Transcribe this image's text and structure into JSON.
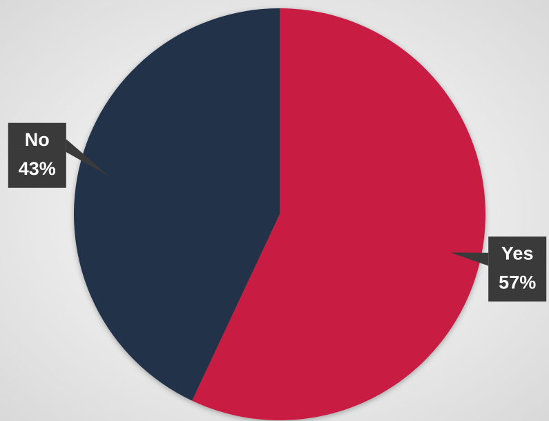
{
  "chart_data": {
    "type": "pie",
    "categories": [
      "Yes",
      "No"
    ],
    "values": [
      57,
      43
    ],
    "value_labels": [
      "57%",
      "43%"
    ],
    "colors": [
      "#c81f42",
      "#213349"
    ]
  }
}
